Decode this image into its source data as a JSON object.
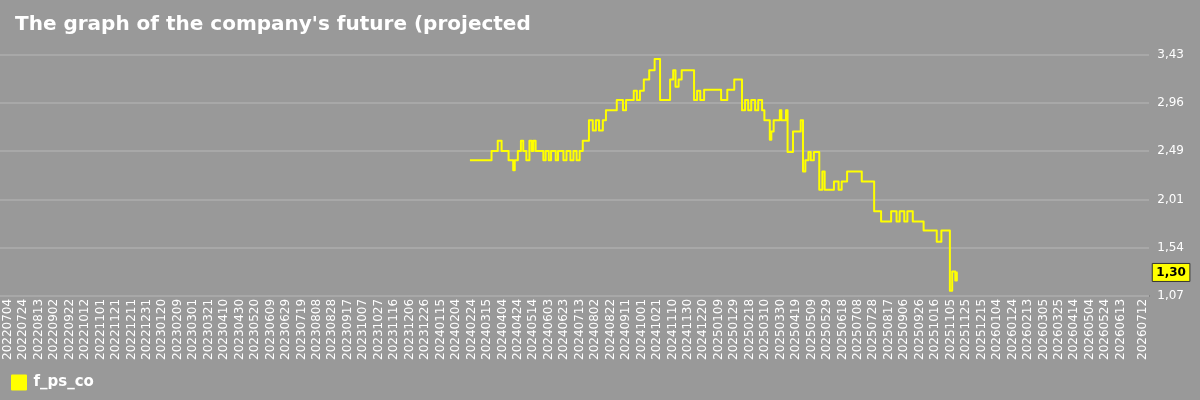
{
  "chart_data": {
    "type": "step",
    "title": "The graph of the company's future (projected",
    "x": [
      "2024-02-22",
      "2024-03-21",
      "2024-03-29",
      "2024-04-03",
      "2024-04-12",
      "2024-04-18",
      "2024-04-20",
      "2024-04-24",
      "2024-04-28",
      "2024-05-01",
      "2024-05-05",
      "2024-05-09",
      "2024-05-12",
      "2024-05-14",
      "2024-05-17",
      "2024-05-27",
      "2024-05-30",
      "2024-06-03",
      "2024-06-06",
      "2024-06-12",
      "2024-06-15",
      "2024-06-22",
      "2024-06-26",
      "2024-07-01",
      "2024-07-05",
      "2024-07-09",
      "2024-07-13",
      "2024-07-17",
      "2024-07-25",
      "2024-07-30",
      "2024-08-03",
      "2024-08-07",
      "2024-08-12",
      "2024-08-16",
      "2024-08-30",
      "2024-09-07",
      "2024-09-11",
      "2024-09-21",
      "2024-09-25",
      "2024-09-29",
      "2024-10-04",
      "2024-10-11",
      "2024-10-18",
      "2024-10-25",
      "2024-11-07",
      "2024-11-11",
      "2024-11-14",
      "2024-11-18",
      "2024-11-22",
      "2024-12-08",
      "2024-12-12",
      "2024-12-16",
      "2024-12-21",
      "2025-01-12",
      "2025-01-20",
      "2025-01-29",
      "2025-02-08",
      "2025-02-12",
      "2025-02-16",
      "2025-02-20",
      "2025-02-25",
      "2025-03-01",
      "2025-03-06",
      "2025-03-09",
      "2025-03-16",
      "2025-03-18",
      "2025-03-21",
      "2025-03-29",
      "2025-03-31",
      "2025-04-06",
      "2025-04-08",
      "2025-04-15",
      "2025-04-25",
      "2025-04-28",
      "2025-05-01",
      "2025-05-05",
      "2025-05-08",
      "2025-05-12",
      "2025-05-19",
      "2025-05-23",
      "2025-05-26",
      "2025-06-07",
      "2025-06-13",
      "2025-06-17",
      "2025-06-24",
      "2025-07-13",
      "2025-07-29",
      "2025-08-07",
      "2025-08-20",
      "2025-08-27",
      "2025-08-31",
      "2025-09-06",
      "2025-09-10",
      "2025-09-17",
      "2025-10-01",
      "2025-10-18",
      "2025-10-24",
      "2025-11-04",
      "2025-11-07",
      "2025-11-11",
      "2025-11-13",
      "2025-11-14"
    ],
    "series": [
      {
        "name": "f_ps_co",
        "color": "#ffff00",
        "values": [
          2.4,
          2.49,
          2.59,
          2.49,
          2.4,
          2.3,
          2.4,
          2.49,
          2.59,
          2.49,
          2.4,
          2.59,
          2.49,
          2.59,
          2.49,
          2.4,
          2.49,
          2.4,
          2.49,
          2.4,
          2.49,
          2.4,
          2.49,
          2.4,
          2.49,
          2.4,
          2.49,
          2.59,
          2.79,
          2.69,
          2.79,
          2.69,
          2.79,
          2.89,
          2.99,
          2.89,
          2.99,
          3.08,
          2.99,
          3.08,
          3.19,
          3.28,
          3.39,
          2.99,
          3.19,
          3.28,
          3.12,
          3.19,
          3.28,
          2.99,
          3.08,
          2.99,
          3.09,
          2.99,
          3.09,
          3.19,
          2.89,
          2.99,
          2.89,
          2.99,
          2.89,
          2.99,
          2.89,
          2.79,
          2.6,
          2.68,
          2.79,
          2.89,
          2.79,
          2.89,
          2.48,
          2.68,
          2.79,
          2.29,
          2.4,
          2.48,
          2.4,
          2.48,
          2.11,
          2.29,
          2.11,
          2.19,
          2.11,
          2.19,
          2.29,
          2.19,
          1.9,
          1.8,
          1.9,
          1.8,
          1.9,
          1.8,
          1.9,
          1.8,
          1.71,
          1.6,
          1.71,
          1.12,
          1.31,
          1.22,
          1.3,
          1.3
        ]
      }
    ],
    "xlim": [
      "2022-06-24",
      "2026-07-20"
    ],
    "ylim": [
      1.07,
      3.43
    ],
    "yticks": [
      {
        "value": 1.07,
        "label": "1,07"
      },
      {
        "value": 1.54,
        "label": "1,54"
      },
      {
        "value": 2.01,
        "label": "2,01"
      },
      {
        "value": 2.49,
        "label": "2,49"
      },
      {
        "value": 2.96,
        "label": "2,96"
      },
      {
        "value": 3.43,
        "label": "3,43"
      }
    ],
    "xticks": [
      {
        "value": "2022-07-04",
        "label": "20220704"
      },
      {
        "value": "2022-07-24",
        "label": "20220724"
      },
      {
        "value": "2022-08-13",
        "label": "20220813"
      },
      {
        "value": "2022-09-02",
        "label": "20220902"
      },
      {
        "value": "2022-09-22",
        "label": "20220922"
      },
      {
        "value": "2022-10-12",
        "label": "20221012"
      },
      {
        "value": "2022-11-01",
        "label": "20221101"
      },
      {
        "value": "2022-11-21",
        "label": "20221121"
      },
      {
        "value": "2022-12-11",
        "label": "20221211"
      },
      {
        "value": "2022-12-31",
        "label": "20221231"
      },
      {
        "value": "2023-01-20",
        "label": "20230120"
      },
      {
        "value": "2023-02-09",
        "label": "20230209"
      },
      {
        "value": "2023-03-01",
        "label": "20230301"
      },
      {
        "value": "2023-03-21",
        "label": "20230321"
      },
      {
        "value": "2023-04-10",
        "label": "20230410"
      },
      {
        "value": "2023-04-30",
        "label": "20230430"
      },
      {
        "value": "2023-05-20",
        "label": "20230520"
      },
      {
        "value": "2023-06-09",
        "label": "20230609"
      },
      {
        "value": "2023-06-29",
        "label": "20230629"
      },
      {
        "value": "2023-07-19",
        "label": "20230719"
      },
      {
        "value": "2023-08-08",
        "label": "20230808"
      },
      {
        "value": "2023-08-28",
        "label": "20230828"
      },
      {
        "value": "2023-09-17",
        "label": "20230917"
      },
      {
        "value": "2023-10-07",
        "label": "20231007"
      },
      {
        "value": "2023-10-27",
        "label": "20231027"
      },
      {
        "value": "2023-11-16",
        "label": "20231116"
      },
      {
        "value": "2023-12-06",
        "label": "20231206"
      },
      {
        "value": "2023-12-26",
        "label": "20231226"
      },
      {
        "value": "2024-01-15",
        "label": "20240115"
      },
      {
        "value": "2024-02-04",
        "label": "20240204"
      },
      {
        "value": "2024-02-24",
        "label": "20240224"
      },
      {
        "value": "2024-03-15",
        "label": "20240315"
      },
      {
        "value": "2024-04-04",
        "label": "20240404"
      },
      {
        "value": "2024-04-24",
        "label": "20240424"
      },
      {
        "value": "2024-05-14",
        "label": "20240514"
      },
      {
        "value": "2024-06-03",
        "label": "20240603"
      },
      {
        "value": "2024-06-23",
        "label": "20240623"
      },
      {
        "value": "2024-07-13",
        "label": "20240713"
      },
      {
        "value": "2024-08-02",
        "label": "20240802"
      },
      {
        "value": "2024-08-22",
        "label": "20240822"
      },
      {
        "value": "2024-09-11",
        "label": "20240911"
      },
      {
        "value": "2024-10-01",
        "label": "20241001"
      },
      {
        "value": "2024-10-21",
        "label": "20241021"
      },
      {
        "value": "2024-11-10",
        "label": "20241110"
      },
      {
        "value": "2024-11-30",
        "label": "20241130"
      },
      {
        "value": "2024-12-20",
        "label": "20241220"
      },
      {
        "value": "2025-01-09",
        "label": "20250109"
      },
      {
        "value": "2025-01-29",
        "label": "20250129"
      },
      {
        "value": "2025-02-18",
        "label": "20250218"
      },
      {
        "value": "2025-03-10",
        "label": "20250310"
      },
      {
        "value": "2025-03-30",
        "label": "20250330"
      },
      {
        "value": "2025-04-19",
        "label": "20250419"
      },
      {
        "value": "2025-05-09",
        "label": "20250509"
      },
      {
        "value": "2025-05-29",
        "label": "20250529"
      },
      {
        "value": "2025-06-18",
        "label": "20250618"
      },
      {
        "value": "2025-07-08",
        "label": "20250708"
      },
      {
        "value": "2025-07-28",
        "label": "20250728"
      },
      {
        "value": "2025-08-17",
        "label": "20250817"
      },
      {
        "value": "2025-09-06",
        "label": "20250906"
      },
      {
        "value": "2025-09-26",
        "label": "20250926"
      },
      {
        "value": "2025-10-16",
        "label": "20251016"
      },
      {
        "value": "2025-11-05",
        "label": "20251105"
      },
      {
        "value": "2025-11-25",
        "label": "20251125"
      },
      {
        "value": "2025-12-15",
        "label": "20251215"
      },
      {
        "value": "2026-01-04",
        "label": "20260104"
      },
      {
        "value": "2026-01-24",
        "label": "20260124"
      },
      {
        "value": "2026-02-13",
        "label": "20260213"
      },
      {
        "value": "2026-03-05",
        "label": "20260305"
      },
      {
        "value": "2026-03-25",
        "label": "20260325"
      },
      {
        "value": "2026-04-14",
        "label": "20260414"
      },
      {
        "value": "2026-05-04",
        "label": "20260504"
      },
      {
        "value": "2026-05-24",
        "label": "20260524"
      },
      {
        "value": "2026-06-13",
        "label": "20260613"
      },
      {
        "value": "2026-07-12",
        "label": "20260712"
      }
    ],
    "grid": "y",
    "legend": "bottom left",
    "annotations": [
      "1,30"
    ]
  }
}
